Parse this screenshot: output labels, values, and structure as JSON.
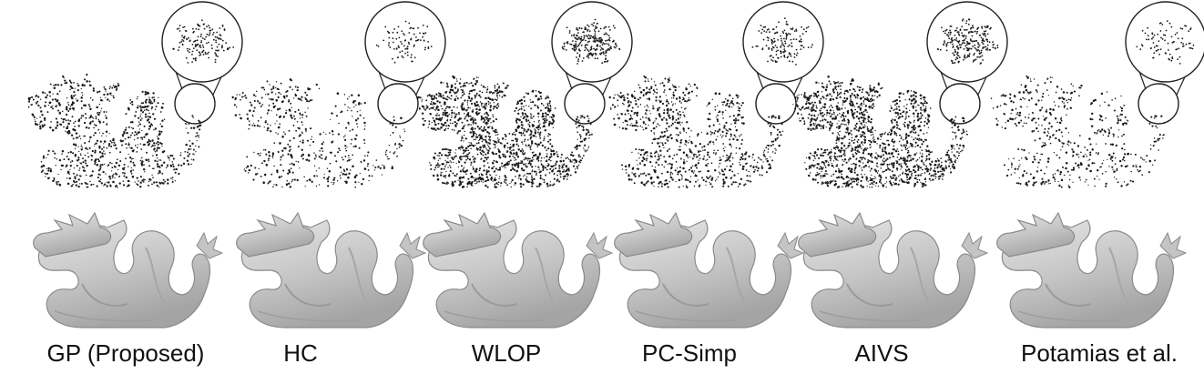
{
  "figure": {
    "methods": [
      {
        "label": "GP (Proposed)",
        "point_density": "medium"
      },
      {
        "label": "HC",
        "point_density": "sparse"
      },
      {
        "label": "WLOP",
        "point_density": "dense"
      },
      {
        "label": "PC-Simp",
        "point_density": "medium"
      },
      {
        "label": "AIVS",
        "point_density": "dense"
      },
      {
        "label": "Potamias et al.",
        "point_density": "sparse"
      }
    ],
    "colors": {
      "point": "#1a1a1a",
      "mesh_fill": "#c9c9c9",
      "mesh_stroke": "#8a8a8a",
      "zoom_circle": "#222222"
    },
    "icons": [
      "dragon-point-cloud",
      "dragon-mesh-render",
      "zoom-inset-circle"
    ]
  }
}
